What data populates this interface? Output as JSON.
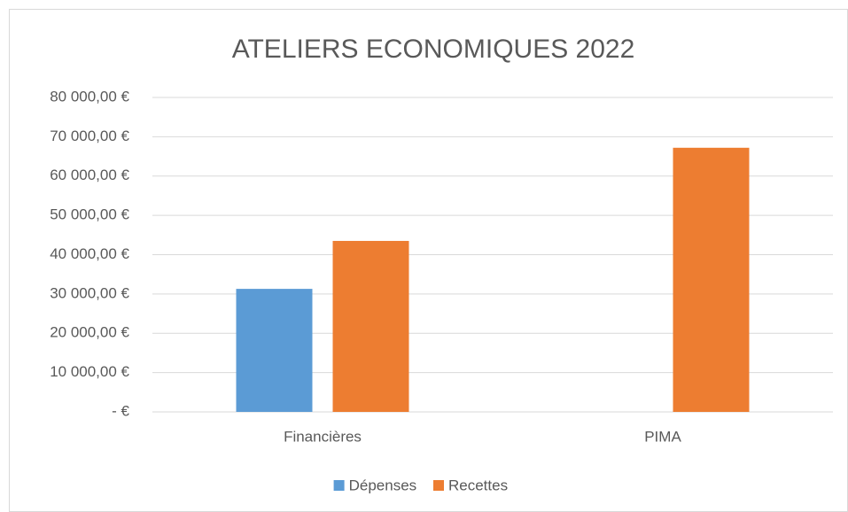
{
  "chart_data": {
    "type": "bar",
    "title": "ATELIERS ECONOMIQUES  2022",
    "categories": [
      "Financières",
      "PIMA"
    ],
    "series": [
      {
        "name": "Dépenses",
        "color": "#5b9bd5",
        "values": [
          31300,
          0
        ]
      },
      {
        "name": "Recettes",
        "color": "#ed7d31",
        "values": [
          43500,
          67200
        ]
      }
    ],
    "ylim": [
      0,
      80000
    ],
    "yticks": [
      {
        "value": 0,
        "label": "- €"
      },
      {
        "value": 10000,
        "label": "10 000,00 €"
      },
      {
        "value": 20000,
        "label": "20 000,00 €"
      },
      {
        "value": 30000,
        "label": "30 000,00 €"
      },
      {
        "value": 40000,
        "label": "40 000,00 €"
      },
      {
        "value": 50000,
        "label": "50 000,00 €"
      },
      {
        "value": 60000,
        "label": "60 000,00 €"
      },
      {
        "value": 70000,
        "label": "70 000,00 €"
      },
      {
        "value": 80000,
        "label": "80 000,00 €"
      }
    ],
    "grid": true,
    "legend": "bottom"
  }
}
